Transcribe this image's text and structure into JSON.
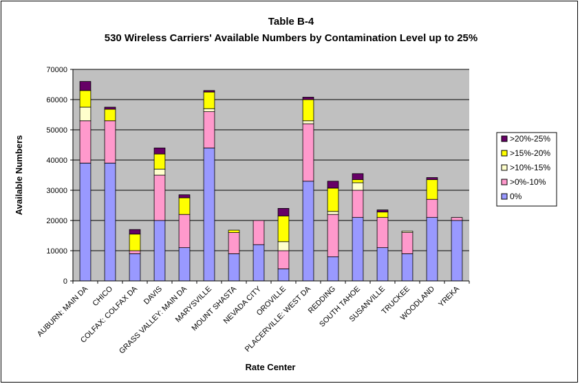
{
  "chart_data": {
    "type": "bar",
    "stacked": true,
    "title": "Table B-4",
    "subtitle": "530 Wireless Carriers' Available Numbers by Contamination Level up to 25%",
    "xlabel": "Rate Center",
    "ylabel": "Available Numbers",
    "ylim": [
      0,
      70000
    ],
    "yticks": [
      "0",
      "10000",
      "20000",
      "30000",
      "40000",
      "50000",
      "60000",
      "70000"
    ],
    "grid": true,
    "legend_position": "right",
    "categories": [
      "AUBURN: MAIN DA",
      "CHICO",
      "COLFAX: COLFAX DA",
      "DAVIS",
      "GRASS VALLEY: MAIN DA",
      "MARYSVILLE",
      "MOUNT SHASTA",
      "NEVADA CITY",
      "OROVILLE",
      "PLACERVILLE: WEST DA",
      "REDDING",
      "SOUTH TAHOE",
      "SUSANVILLE",
      "TRUCKEE",
      "WOODLAND",
      "YREKA"
    ],
    "series": [
      {
        "name": "0%",
        "color": "#9999ff",
        "values": [
          39000,
          39000,
          9000,
          20000,
          11000,
          44000,
          9000,
          12000,
          4000,
          33000,
          8000,
          21000,
          11000,
          9000,
          21000,
          20000
        ]
      },
      {
        "name": ">0%-10%",
        "color": "#ff99cc",
        "values": [
          14000,
          14000,
          1000,
          15000,
          11000,
          12000,
          7000,
          8000,
          6000,
          19000,
          14000,
          9000,
          10000,
          7000,
          6000,
          1000
        ]
      },
      {
        "name": ">10%-15%",
        "color": "#ffffcc",
        "values": [
          4500,
          0,
          0,
          2000,
          0,
          1000,
          0,
          0,
          3000,
          1000,
          1000,
          2500,
          0,
          500,
          0,
          0
        ]
      },
      {
        "name": ">15%-20%",
        "color": "#ffff00",
        "values": [
          5500,
          3800,
          5500,
          5000,
          5500,
          5500,
          800,
          0,
          8500,
          7000,
          7700,
          1000,
          1800,
          0,
          6500,
          0
        ]
      },
      {
        "name": ">20%-25%",
        "color": "#660066",
        "values": [
          3000,
          700,
          1500,
          2000,
          1000,
          500,
          0,
          0,
          2500,
          800,
          2300,
          2000,
          700,
          0,
          700,
          0
        ]
      }
    ]
  },
  "colors": {
    "plot_background": "#c0c0c0",
    "gridline": "#000000"
  }
}
